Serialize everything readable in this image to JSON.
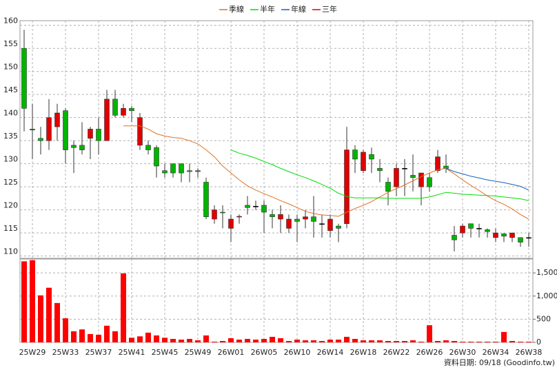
{
  "chart_data": [
    {
      "type": "candlestick",
      "open": [
        155,
        137.5,
        135.5,
        135,
        138,
        141.5,
        134,
        134,
        135.5,
        137.5,
        135,
        144,
        140.5,
        142,
        134,
        134,
        133.5,
        128.5,
        130,
        130,
        128.5,
        128.5,
        126,
        118,
        119.5,
        116,
        118.5,
        121,
        120.8,
        121,
        119,
        118,
        116,
        118,
        118,
        118.5,
        117,
        115.5,
        116.5,
        117,
        133,
        128.5,
        132,
        129,
        126,
        125,
        129,
        127.5,
        125,
        127,
        128.5,
        129.5,
        114.5,
        115,
        117,
        116,
        115.7,
        114,
        114.8,
        114,
        114,
        114
      ],
      "high": [
        159,
        143,
        138,
        144,
        143,
        142,
        135,
        139,
        138,
        140,
        146,
        146,
        143,
        142.5,
        141,
        135,
        134,
        130,
        130,
        130,
        130,
        129,
        127,
        121,
        121,
        119,
        119,
        123,
        122,
        122,
        120,
        121,
        119,
        119,
        120,
        123,
        119,
        119,
        117,
        138,
        134,
        133,
        133.5,
        131,
        127,
        130,
        131,
        132,
        128,
        128,
        133,
        132,
        116.5,
        117,
        117,
        117,
        116,
        116,
        115,
        115,
        114,
        115
      ],
      "low": [
        137,
        131,
        132,
        133,
        135,
        130,
        128,
        132,
        131,
        132,
        135,
        140,
        140,
        139,
        133,
        132,
        127,
        127,
        127,
        126,
        126,
        127,
        118,
        117,
        116,
        113,
        117,
        119,
        120,
        115,
        116,
        115,
        115,
        113,
        116,
        114,
        114,
        114,
        113,
        116,
        128,
        128,
        128,
        126,
        121,
        123,
        123,
        124,
        121,
        124,
        128,
        128,
        111,
        114,
        114,
        114,
        114,
        113,
        113,
        113,
        112,
        112
      ],
      "close": [
        142,
        137.3,
        135,
        140,
        141,
        133,
        133.5,
        133,
        137.5,
        135,
        144,
        140.5,
        142,
        141.5,
        140,
        133,
        129.5,
        128,
        128,
        128,
        128.3,
        128.3,
        118.5,
        120,
        119.4,
        118,
        118.6,
        120.5,
        120.8,
        119.5,
        118.5,
        119,
        118,
        117.5,
        118.5,
        117.5,
        117,
        118,
        116,
        133,
        131,
        132.5,
        131,
        128.5,
        124,
        129,
        129,
        127,
        128,
        125,
        131.5,
        129,
        113.5,
        116.5,
        116,
        116,
        115.3,
        115,
        114.3,
        115,
        113,
        114
      ],
      "up_color": "#e00000",
      "down_color": "#00b400",
      "series": [
        {
          "name": "季線",
          "color": "#e07020",
          "values": [
            null,
            null,
            null,
            null,
            null,
            null,
            null,
            null,
            null,
            null,
            null,
            null,
            138.2,
            138.2,
            138.2,
            137.5,
            136.5,
            136,
            135.7,
            135.5,
            135,
            134.3,
            133,
            131.5,
            129.5,
            128,
            126.5,
            125.2,
            124.3,
            123.5,
            122.8,
            122,
            121.3,
            120.5,
            119.7,
            119.2,
            118.9,
            118.8,
            118.6,
            119.5,
            120.3,
            121,
            121.8,
            122.8,
            123.8,
            124.6,
            125.4,
            126.3,
            127.2,
            128,
            128.7,
            129,
            127.8,
            126.5,
            125.3,
            124.2,
            123,
            122,
            121.2,
            120.2,
            119,
            118
          ]
        },
        {
          "name": "半年",
          "color": "#00dd00",
          "values": [
            null,
            null,
            null,
            null,
            null,
            null,
            null,
            null,
            null,
            null,
            null,
            null,
            null,
            null,
            null,
            null,
            null,
            null,
            null,
            null,
            null,
            null,
            null,
            null,
            null,
            133,
            132.3,
            131.8,
            131.2,
            130.5,
            129.8,
            129,
            128.3,
            127.6,
            127,
            126.3,
            125.5,
            124.7,
            123.6,
            122.9,
            122.6,
            122.6,
            122.6,
            122.6,
            122.5,
            122.5,
            122.5,
            122.5,
            122.5,
            122.8,
            123.3,
            123.8,
            123.6,
            123.4,
            123.3,
            123.2,
            123.1,
            123,
            122.8,
            122.6,
            122.4,
            122
          ]
        },
        {
          "name": "年線",
          "color": "#1060c0",
          "values": [
            null,
            null,
            null,
            null,
            null,
            null,
            null,
            null,
            null,
            null,
            null,
            null,
            null,
            null,
            null,
            null,
            null,
            null,
            null,
            null,
            null,
            null,
            null,
            null,
            null,
            null,
            null,
            null,
            null,
            null,
            null,
            null,
            null,
            null,
            null,
            null,
            null,
            null,
            null,
            null,
            null,
            null,
            null,
            null,
            null,
            null,
            null,
            null,
            null,
            null,
            null,
            129,
            128.3,
            127.8,
            127.3,
            126.9,
            126.5,
            126.2,
            125.9,
            125.5,
            125.1,
            124.3
          ]
        },
        {
          "name": "三年",
          "color": "#e00000",
          "values": [
            null,
            null,
            null,
            null,
            null,
            null,
            null,
            null,
            null,
            null,
            null,
            null,
            null,
            null,
            null,
            null,
            null,
            null,
            null,
            null,
            null,
            null,
            null,
            null,
            null,
            null,
            null,
            null,
            null,
            null,
            null,
            null,
            null,
            null,
            null,
            null,
            null,
            null,
            null,
            null,
            null,
            null,
            null,
            null,
            null,
            null,
            null,
            null,
            null,
            null,
            null,
            null,
            null,
            null,
            null,
            null,
            null,
            null,
            null,
            null,
            null,
            null
          ]
        }
      ],
      "ylim": [
        109.5,
        161
      ],
      "yticks": [
        110,
        115,
        120,
        125,
        130,
        135,
        140,
        145,
        150,
        155,
        160
      ],
      "grid": true
    },
    {
      "type": "bar",
      "categories": [
        null,
        "25W29",
        null,
        null,
        null,
        "25W33",
        null,
        null,
        null,
        "25W37",
        null,
        null,
        null,
        "25W41",
        null,
        null,
        null,
        "25W45",
        null,
        null,
        null,
        "25W49",
        null,
        null,
        null,
        "26W01",
        null,
        null,
        null,
        "26W05",
        null,
        null,
        null,
        "26W10",
        null,
        null,
        null,
        "26W14",
        null,
        null,
        null,
        "26W18",
        null,
        null,
        null,
        "26W22",
        null,
        null,
        null,
        "26W26",
        null,
        null,
        null,
        "26W30",
        null,
        null,
        null,
        "26W34",
        null,
        null,
        null,
        "26W38"
      ],
      "values": [
        1750,
        1775,
        1015,
        1180,
        850,
        520,
        240,
        280,
        180,
        165,
        360,
        240,
        1490,
        100,
        130,
        210,
        150,
        100,
        75,
        60,
        75,
        45,
        150,
        15,
        30,
        90,
        60,
        75,
        60,
        75,
        120,
        90,
        30,
        60,
        45,
        45,
        30,
        60,
        60,
        120,
        75,
        45,
        45,
        45,
        30,
        30,
        30,
        45,
        15,
        370,
        30,
        45,
        30,
        15,
        15,
        15,
        15,
        15,
        225,
        30,
        15,
        15
      ],
      "color": "#ff0000",
      "ylim": [
        0,
        1800
      ],
      "yticks": [
        0,
        500,
        {
          "value": 1000,
          "label": "1,000"
        },
        {
          "value": 1500,
          "label": "1,500"
        }
      ],
      "grid": true
    }
  ],
  "source": "資料日期: 09/18  (Goodinfo.tw)"
}
